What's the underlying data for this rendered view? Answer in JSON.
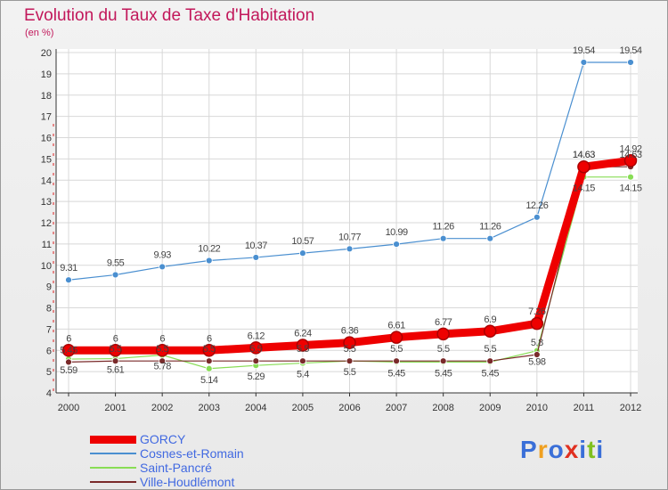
{
  "title": "Evolution du Taux de Taxe d'Habitation",
  "subtitle": "(en %)",
  "logo": [
    "P",
    "r",
    "o",
    "x",
    "i",
    "t",
    "i"
  ],
  "logo_colors": [
    "#3a6fd8",
    "#f0a020",
    "#3a6fd8",
    "#e03020",
    "#3a6fd8",
    "#80c020",
    "#3a6fd8"
  ],
  "chart_data": {
    "type": "line",
    "x": [
      "2000",
      "2001",
      "2002",
      "2003",
      "2004",
      "2005",
      "2006",
      "2007",
      "2008",
      "2009",
      "2010",
      "2011",
      "2012"
    ],
    "ylim": [
      4,
      20
    ],
    "yticks": [
      4,
      5,
      6,
      7,
      8,
      9,
      10,
      11,
      12,
      13,
      14,
      15,
      16,
      17,
      18,
      19,
      20
    ],
    "grid": true,
    "legend_position": "bottom-left",
    "series": [
      {
        "name": "GORCY",
        "color": "#ee0000",
        "values": [
          6,
          6,
          6,
          6,
          6.12,
          6.24,
          6.36,
          6.61,
          6.77,
          6.9,
          7.26,
          14.63,
          14.92
        ],
        "labels": [
          "6",
          "6",
          "6",
          "6",
          "6.12",
          "6.24",
          "6.36",
          "6.61",
          "6.77",
          "6.9",
          "7.26",
          "14.63",
          "14.92"
        ]
      },
      {
        "name": "Cosnes-et-Romain",
        "color": "#4a8fd0",
        "values": [
          9.31,
          9.55,
          9.93,
          10.22,
          10.37,
          10.57,
          10.77,
          10.99,
          11.26,
          11.26,
          12.26,
          19.54,
          19.54
        ],
        "labels": [
          "9.31",
          "9.55",
          "9.93",
          "10.22",
          "10.37",
          "10.57",
          "10.77",
          "10.99",
          "11.26",
          "11.26",
          "12.26",
          "19.54",
          "19.54"
        ]
      },
      {
        "name": "Saint-Pancré",
        "color": "#88dd55",
        "values": [
          5.59,
          5.61,
          5.78,
          5.14,
          5.29,
          5.4,
          5.5,
          5.45,
          5.45,
          5.45,
          5.98,
          14.15,
          14.15
        ],
        "labels": [
          "5.59",
          "5.61",
          "5.78",
          "5.14",
          "5.29",
          "5.4",
          "5.5",
          "5.45",
          "5.45",
          "5.45",
          "5.98",
          "14.15",
          "14.15"
        ]
      },
      {
        "name": "Ville-Houdlémont",
        "color": "#7a2a2a",
        "values": [
          5.45,
          5.5,
          5.5,
          5.5,
          5.5,
          5.5,
          5.5,
          5.5,
          5.5,
          5.5,
          5.8,
          14.63,
          14.63
        ],
        "labels": [
          "5.45",
          "5.5",
          "5.5",
          "5.5",
          "5.5",
          "5.5",
          "5.5",
          "5.5",
          "5.5",
          "5.5",
          "5.8",
          "14.63",
          "14.63"
        ]
      }
    ]
  }
}
